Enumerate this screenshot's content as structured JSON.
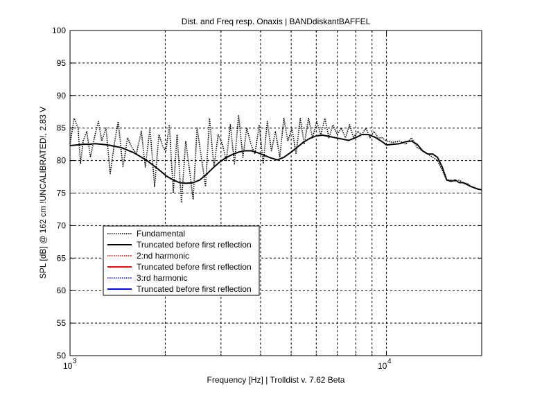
{
  "chart_data": {
    "type": "line",
    "title": "Dist. and Freq resp. Onaxis | BANDdiskantBAFFEL",
    "xlabel": "Frequency [Hz] | Trolldist v. 7.62 Beta",
    "ylabel": "SPL [dB] @ 162 cm !UNCALIBRATED!, 2.83 V",
    "xscale": "log",
    "xlim": [
      1000,
      20000
    ],
    "ylim": [
      50,
      100
    ],
    "grid": true,
    "legend_position": "lower-left",
    "y_ticks": [
      50,
      55,
      60,
      65,
      70,
      75,
      80,
      85,
      90,
      95,
      100
    ],
    "x_tick_labels": {
      "base": "10",
      "exp_3": "3",
      "exp_4": "4"
    },
    "series": [
      {
        "name": "Fundamental",
        "color": "#000000",
        "style": "dotted",
        "x": [
          1000,
          1030,
          1060,
          1080,
          1100,
          1130,
          1160,
          1200,
          1230,
          1260,
          1300,
          1340,
          1380,
          1420,
          1470,
          1520,
          1570,
          1620,
          1680,
          1730,
          1790,
          1850,
          1910,
          1970,
          2010,
          2060,
          2120,
          2180,
          2250,
          2320,
          2380,
          2450,
          2520,
          2600,
          2680,
          2760,
          2850,
          2940,
          3030,
          3120,
          3210,
          3310,
          3410,
          3520,
          3620,
          3730,
          3840,
          3960,
          4080,
          4200,
          4330,
          4460,
          4600,
          4740,
          4880,
          5030,
          5180,
          5340,
          5500,
          5670,
          5840,
          6020,
          6200,
          6390,
          6580,
          6780,
          6990,
          7200,
          7420,
          7640,
          7870,
          8110,
          8360,
          8610,
          8870,
          9140,
          9420,
          9700,
          10000,
          10500,
          11000,
          11500,
          12000,
          12500,
          13000,
          13500,
          14000,
          14500,
          15000,
          15500,
          16000,
          16500,
          17000,
          17500,
          18000,
          18500,
          19000,
          19500,
          20000
        ],
        "y": [
          82.5,
          86.5,
          85.0,
          79.5,
          83.0,
          84.5,
          80.5,
          84.0,
          86.0,
          83.0,
          85.0,
          78.0,
          82.5,
          86.0,
          79.0,
          83.5,
          82.0,
          81.0,
          84.5,
          79.0,
          85.0,
          76.0,
          84.0,
          82.0,
          81.5,
          85.5,
          75.0,
          84.0,
          73.5,
          83.0,
          79.0,
          74.0,
          85.0,
          80.5,
          76.0,
          86.5,
          79.0,
          84.0,
          82.5,
          80.0,
          85.5,
          79.5,
          87.0,
          80.5,
          85.0,
          82.5,
          81.0,
          85.5,
          79.5,
          86.0,
          81.5,
          84.5,
          80.5,
          86.5,
          83.0,
          85.0,
          81.0,
          86.5,
          82.5,
          86.5,
          83.5,
          86.0,
          84.0,
          86.5,
          83.5,
          85.5,
          84.0,
          85.0,
          83.5,
          85.5,
          83.5,
          84.5,
          84.0,
          85.0,
          83.5,
          84.5,
          83.5,
          83.5,
          83.0,
          82.8,
          83.0,
          82.5,
          83.5,
          82.0,
          81.5,
          81.0,
          80.5,
          80.0,
          78.5,
          77.0,
          77.0,
          76.8,
          77.0,
          76.5,
          76.5,
          76.0,
          75.8,
          75.6,
          75.5
        ]
      },
      {
        "name": "Truncated before first reflection",
        "color": "#000000",
        "style": "solid",
        "x": [
          1000,
          1050,
          1100,
          1150,
          1200,
          1260,
          1320,
          1380,
          1450,
          1520,
          1590,
          1670,
          1750,
          1840,
          1930,
          2020,
          2120,
          2220,
          2330,
          2450,
          2570,
          2690,
          2820,
          2960,
          3100,
          3250,
          3410,
          3570,
          3740,
          3920,
          4110,
          4310,
          4520,
          4740,
          4970,
          5210,
          5460,
          5720,
          6000,
          6290,
          6600,
          6920,
          7250,
          7600,
          7970,
          8360,
          8760,
          9180,
          9630,
          10000,
          10500,
          11000,
          11500,
          12000,
          12500,
          13000,
          13500,
          14000,
          14500,
          15000,
          15500,
          16000,
          16500,
          17000,
          17500,
          18000,
          18500,
          19000,
          19500,
          20000
        ],
        "y": [
          82.3,
          82.4,
          82.5,
          82.5,
          82.6,
          82.5,
          82.4,
          82.2,
          82.0,
          81.6,
          81.2,
          80.6,
          80.0,
          79.2,
          78.4,
          77.6,
          77.0,
          76.6,
          76.5,
          76.6,
          77.0,
          77.8,
          78.8,
          79.7,
          80.4,
          80.9,
          81.3,
          81.5,
          81.5,
          81.2,
          80.8,
          80.4,
          80.1,
          80.5,
          81.2,
          82.0,
          82.8,
          83.4,
          83.8,
          83.9,
          83.7,
          83.5,
          83.3,
          83.1,
          83.5,
          84.0,
          84.0,
          83.6,
          83.0,
          82.4,
          82.5,
          82.6,
          82.9,
          83.0,
          82.5,
          81.5,
          81.0,
          81.0,
          80.5,
          79.0,
          77.0,
          76.8,
          77.0,
          76.6,
          76.6,
          76.3,
          76.0,
          75.8,
          75.6,
          75.5
        ]
      },
      {
        "name": "2:nd harmonic",
        "color": "#ff0000",
        "style": "dotted",
        "x": [],
        "y": []
      },
      {
        "name": "Truncated before first reflection",
        "color": "#ff0000",
        "style": "solid",
        "x": [],
        "y": []
      },
      {
        "name": "3:rd harmonic",
        "color": "#0000ff",
        "style": "dotted",
        "x": [],
        "y": []
      },
      {
        "name": "Truncated before first reflection",
        "color": "#0000ff",
        "style": "solid",
        "x": [],
        "y": []
      }
    ]
  }
}
